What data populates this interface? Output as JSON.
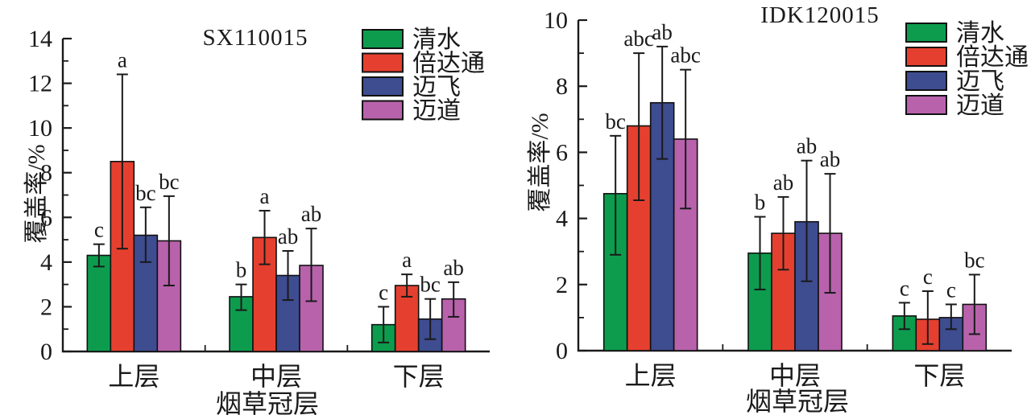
{
  "page": {
    "background": "#ffffff",
    "ink_color": "#1a1a1a"
  },
  "chart_data": [
    {
      "type": "bar",
      "title": "SX110015",
      "xlabel": "烟草冠层",
      "ylabel": "覆盖率/%",
      "ylim": [
        0,
        14
      ],
      "ytick_step": 2,
      "ytick_labels": [
        "0",
        "2",
        "4",
        "6",
        "8",
        "10",
        "12",
        "14"
      ],
      "grid": false,
      "legend_position": "top-right",
      "categories": [
        "上层",
        "中层",
        "下层"
      ],
      "series": [
        {
          "name": "清水",
          "color": "#0D9C4E",
          "values": [
            4.3,
            2.45,
            1.2
          ],
          "err_minus": [
            0.5,
            0.6,
            0.8
          ],
          "err_plus": [
            0.5,
            0.55,
            0.8
          ],
          "sig_letters": [
            "c",
            "b",
            "c"
          ]
        },
        {
          "name": "倍达通",
          "color": "#E5402F",
          "values": [
            8.5,
            5.1,
            2.95
          ],
          "err_minus": [
            3.9,
            1.2,
            0.5
          ],
          "err_plus": [
            3.9,
            1.2,
            0.5
          ],
          "sig_letters": [
            "a",
            "a",
            "a"
          ]
        },
        {
          "name": "迈飞",
          "color": "#3E4C90",
          "values": [
            5.2,
            3.4,
            1.45
          ],
          "err_minus": [
            1.2,
            1.1,
            0.9
          ],
          "err_plus": [
            1.25,
            1.1,
            0.9
          ],
          "sig_letters": [
            "bc",
            "ab",
            "bc"
          ]
        },
        {
          "name": "迈道",
          "color": "#B862AC",
          "values": [
            4.95,
            3.85,
            2.35
          ],
          "err_minus": [
            2.0,
            1.6,
            0.8
          ],
          "err_plus": [
            2.0,
            1.65,
            0.75
          ],
          "sig_letters": [
            "bc",
            "ab",
            "ab"
          ]
        }
      ]
    },
    {
      "type": "bar",
      "title": "IDK120015",
      "xlabel": "烟草冠层",
      "ylabel": "覆盖率/%",
      "ylim": [
        0,
        10
      ],
      "ytick_step": 2,
      "ytick_labels": [
        "0",
        "2",
        "4",
        "6",
        "8",
        "10"
      ],
      "grid": false,
      "legend_position": "top-right",
      "categories": [
        "上层",
        "中层",
        "下层"
      ],
      "series": [
        {
          "name": "清水",
          "color": "#0D9C4E",
          "values": [
            4.75,
            2.95,
            1.05
          ],
          "err_minus": [
            1.85,
            1.1,
            0.4
          ],
          "err_plus": [
            1.75,
            1.1,
            0.4
          ],
          "sig_letters": [
            "bc",
            "b",
            "c"
          ]
        },
        {
          "name": "倍达通",
          "color": "#E5402F",
          "values": [
            6.8,
            3.55,
            0.95
          ],
          "err_minus": [
            2.25,
            1.1,
            0.75
          ],
          "err_plus": [
            2.2,
            1.1,
            0.85
          ],
          "sig_letters": [
            "abc",
            "ab",
            "c"
          ]
        },
        {
          "name": "迈飞",
          "color": "#3E4C90",
          "values": [
            7.5,
            3.9,
            1.0
          ],
          "err_minus": [
            1.7,
            1.8,
            0.35
          ],
          "err_plus": [
            1.7,
            1.85,
            0.4
          ],
          "sig_letters": [
            "ab",
            "ab",
            "c"
          ]
        },
        {
          "name": "迈道",
          "color": "#B862AC",
          "values": [
            6.4,
            3.55,
            1.4
          ],
          "err_minus": [
            2.1,
            1.8,
            0.9
          ],
          "err_plus": [
            2.1,
            1.8,
            0.9
          ],
          "sig_letters": [
            "abc",
            "ab",
            "bc"
          ]
        }
      ]
    }
  ]
}
